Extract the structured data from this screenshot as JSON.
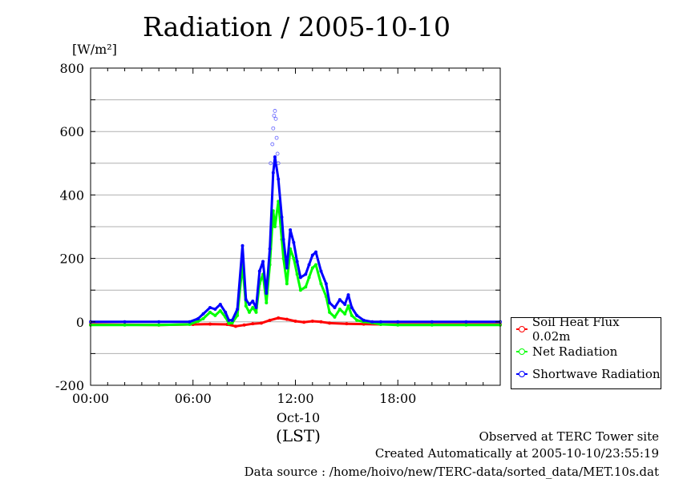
{
  "title": "Radiation / 2005-10-10",
  "y_unit": "[W/m²]",
  "x_date_label": "Oct-10",
  "x_unit_label": "(LST)",
  "footer": {
    "line1": "Observed at TERC Tower site",
    "line2": "Created Automatically at 2005-10-10/23:55:19",
    "line3": "Data source : /home/hoivo/new/TERC-data/sorted_data/MET.10s.dat"
  },
  "legend": {
    "items": [
      {
        "label": "Soil Heat Flux 0.02m",
        "color": "#ff0000"
      },
      {
        "label": "Net Radiation",
        "color": "#00ff00"
      },
      {
        "label": "Shortwave Radiation",
        "color": "#0000ff"
      }
    ]
  },
  "chart_data": {
    "type": "line",
    "title": "Radiation / 2005-10-10",
    "xlabel": "Oct-10",
    "ylabel": "[W/m²]",
    "xlim": [
      0,
      24
    ],
    "ylim": [
      -200,
      800
    ],
    "x_ticks": [
      0,
      6,
      12,
      18
    ],
    "x_tick_labels": [
      "00:00",
      "06:00",
      "12:00",
      "18:00"
    ],
    "y_ticks": [
      -200,
      0,
      200,
      400,
      600,
      800
    ],
    "y_tick_labels": [
      "-200",
      "0",
      "200",
      "400",
      "600",
      "800"
    ],
    "grid": true,
    "legend_position": "right",
    "series": [
      {
        "name": "Soil Heat Flux 0.02m",
        "color": "#ff0000",
        "x": [
          0,
          2,
          4,
          6,
          7,
          8,
          8.5,
          9,
          9.5,
          10,
          10.5,
          11,
          11.5,
          12,
          12.5,
          13,
          13.5,
          14,
          15,
          16,
          17,
          18,
          20,
          22,
          24
        ],
        "y": [
          -8,
          -9,
          -10,
          -8,
          -7,
          -8,
          -14,
          -10,
          -6,
          -4,
          5,
          12,
          8,
          2,
          -1,
          2,
          0,
          -4,
          -6,
          -7,
          -8,
          -8,
          -8,
          -8,
          -8
        ]
      },
      {
        "name": "Net Radiation",
        "color": "#00ff00",
        "x": [
          0,
          2,
          4,
          5.8,
          6.3,
          6.6,
          7.0,
          7.3,
          7.6,
          7.9,
          8.1,
          8.3,
          8.6,
          8.9,
          9.1,
          9.3,
          9.5,
          9.7,
          9.9,
          10.1,
          10.3,
          10.5,
          10.7,
          10.8,
          11.0,
          11.2,
          11.3,
          11.5,
          11.7,
          11.9,
          12.1,
          12.3,
          12.6,
          12.8,
          13.0,
          13.2,
          13.5,
          13.8,
          14.0,
          14.3,
          14.6,
          14.9,
          15.1,
          15.3,
          15.6,
          16.0,
          16.5,
          17,
          18,
          20,
          22,
          24
        ],
        "y": [
          -10,
          -10,
          -10,
          -8,
          2,
          10,
          30,
          20,
          35,
          15,
          -5,
          -3,
          20,
          180,
          50,
          30,
          45,
          30,
          120,
          150,
          60,
          180,
          350,
          300,
          380,
          260,
          200,
          120,
          230,
          200,
          150,
          100,
          110,
          140,
          170,
          180,
          120,
          80,
          30,
          15,
          40,
          25,
          50,
          20,
          5,
          0,
          -3,
          -8,
          -10,
          -10,
          -10,
          -10
        ]
      },
      {
        "name": "Shortwave Radiation",
        "color": "#0000ff",
        "x": [
          0,
          2,
          4,
          5.8,
          6.3,
          6.6,
          7.0,
          7.3,
          7.6,
          7.9,
          8.1,
          8.3,
          8.6,
          8.9,
          9.1,
          9.3,
          9.5,
          9.7,
          9.9,
          10.1,
          10.3,
          10.5,
          10.7,
          10.8,
          11.0,
          11.2,
          11.3,
          11.5,
          11.7,
          11.9,
          12.1,
          12.3,
          12.6,
          12.8,
          13.0,
          13.2,
          13.5,
          13.8,
          14.0,
          14.3,
          14.6,
          14.9,
          15.1,
          15.3,
          15.6,
          16.0,
          16.5,
          17,
          18,
          20,
          22,
          24
        ],
        "y": [
          0,
          0,
          0,
          0,
          10,
          25,
          45,
          40,
          55,
          30,
          5,
          5,
          40,
          240,
          70,
          55,
          65,
          45,
          160,
          190,
          90,
          230,
          470,
          520,
          450,
          330,
          260,
          170,
          290,
          250,
          190,
          140,
          150,
          180,
          210,
          220,
          160,
          120,
          60,
          45,
          70,
          55,
          85,
          45,
          20,
          5,
          0,
          0,
          0,
          0,
          0,
          0
        ]
      }
    ],
    "peak_points": {
      "series": "Shortwave Radiation",
      "x": [
        10.55,
        10.65,
        10.7,
        10.75,
        10.8,
        10.85,
        10.9,
        10.95,
        11.0
      ],
      "y": [
        500,
        560,
        610,
        650,
        665,
        640,
        580,
        530,
        500
      ]
    }
  }
}
